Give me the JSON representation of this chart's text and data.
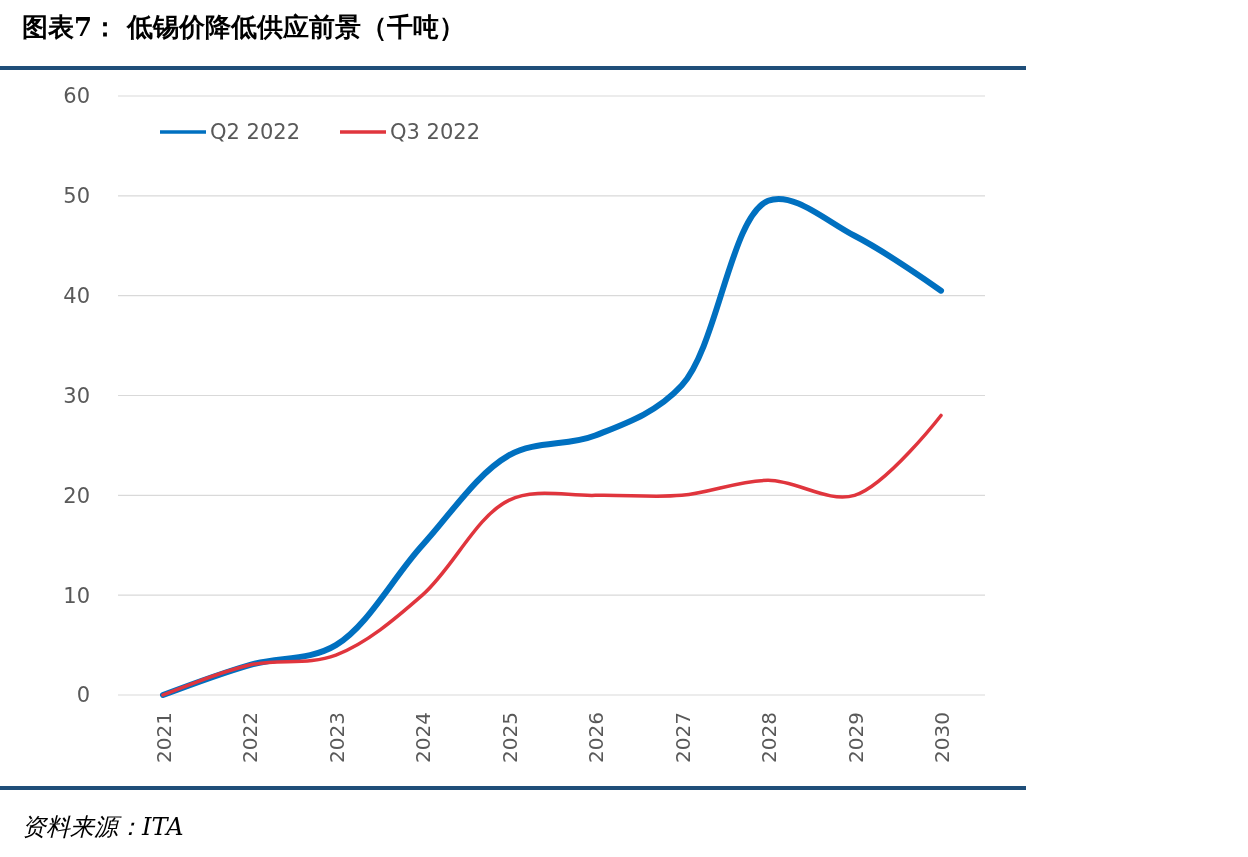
{
  "chart_data": {
    "type": "line",
    "title": "图表7：  低锡价降低供应前景（千吨）",
    "categories": [
      "2021",
      "2022",
      "2023",
      "2024",
      "2025",
      "2026",
      "2027",
      "2028",
      "2029",
      "2030"
    ],
    "series": [
      {
        "name": "Q2 2022",
        "color": "#0070c0",
        "values": [
          0,
          3,
          5,
          15,
          24,
          26,
          31,
          49.5,
          46,
          40.5
        ]
      },
      {
        "name": "Q3 2022",
        "color": "#e0353d",
        "values": [
          0,
          3,
          4,
          10,
          19.5,
          20,
          20,
          21.5,
          20,
          28
        ]
      }
    ],
    "ylim": [
      0,
      60
    ],
    "yticks": [
      0,
      10,
      20,
      30,
      40,
      50,
      60
    ],
    "grid": "y",
    "legend": "top left",
    "marker": "none",
    "line_style": "solid",
    "annotations": [
      "资料来源：ITA"
    ]
  }
}
